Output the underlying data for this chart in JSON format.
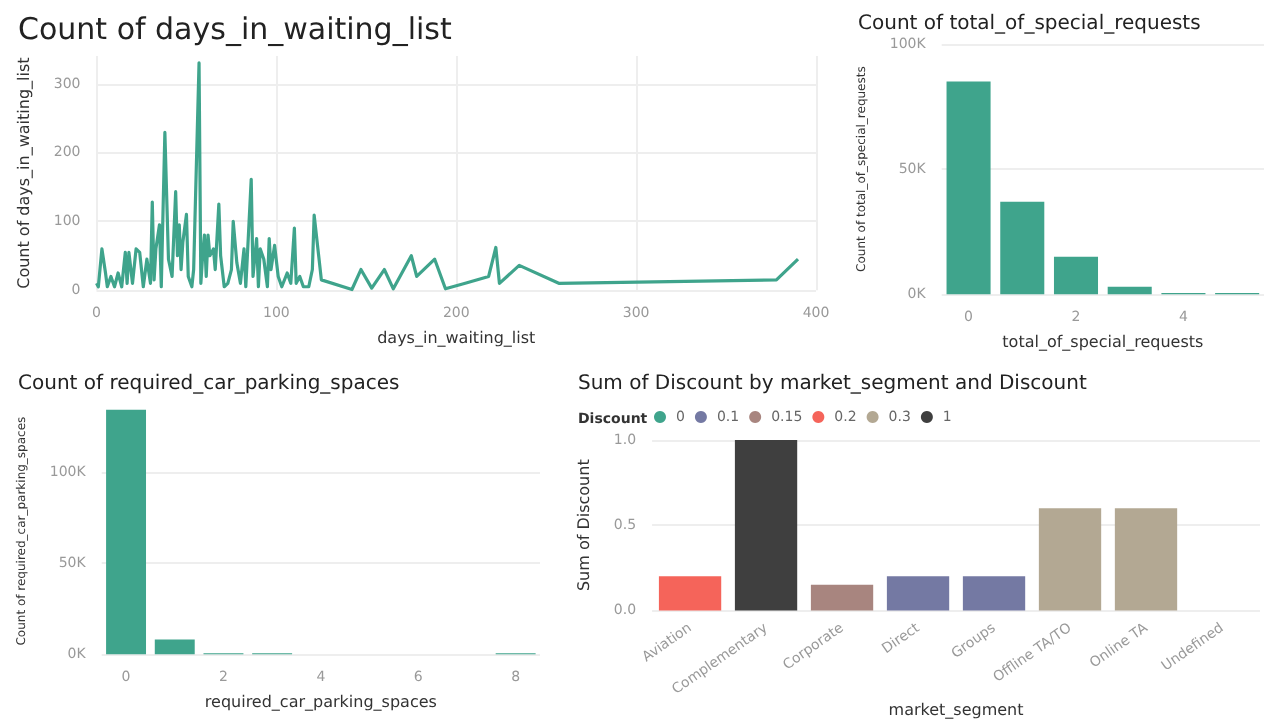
{
  "chart_data": [
    {
      "type": "line",
      "title": "Count of days_in_waiting_list",
      "xlabel": "days_in_waiting_list",
      "ylabel": "Count of days_in_waiting_list",
      "color": "#3fa48c",
      "line_style": "solid",
      "grid": true,
      "x": [
        0,
        1,
        3,
        5,
        6,
        8,
        10,
        12,
        14,
        16,
        17,
        18,
        20,
        22,
        24,
        26,
        28,
        30,
        31,
        32,
        33,
        35,
        36,
        38,
        40,
        42,
        44,
        45,
        46,
        47,
        48,
        50,
        51,
        53,
        54,
        57,
        58,
        59,
        60,
        61,
        62,
        63,
        65,
        66,
        68,
        69,
        71,
        73,
        75,
        76,
        78,
        80,
        82,
        83,
        86,
        87,
        89,
        90,
        91,
        93,
        95,
        96,
        97,
        99,
        101,
        103,
        106,
        108,
        110,
        111,
        113,
        115,
        118,
        120,
        121,
        125,
        142,
        147,
        153,
        160,
        165,
        175,
        178,
        188,
        194,
        205,
        218,
        222,
        224,
        235,
        257,
        378,
        390
      ],
      "values": [
        10,
        5,
        60,
        25,
        5,
        20,
        5,
        25,
        5,
        55,
        10,
        55,
        10,
        60,
        55,
        5,
        45,
        10,
        128,
        15,
        60,
        95,
        5,
        229,
        45,
        20,
        143,
        50,
        95,
        30,
        70,
        110,
        20,
        5,
        30,
        330,
        10,
        50,
        80,
        20,
        80,
        50,
        60,
        30,
        125,
        50,
        5,
        10,
        30,
        100,
        40,
        10,
        60,
        5,
        161,
        20,
        75,
        5,
        60,
        45,
        5,
        75,
        30,
        65,
        20,
        5,
        25,
        10,
        90,
        10,
        20,
        5,
        5,
        30,
        109,
        15,
        1,
        30,
        3,
        30,
        2,
        50,
        20,
        45,
        2,
        10,
        20,
        62,
        10,
        36,
        10,
        15,
        45
      ],
      "xlim": [
        0,
        400
      ],
      "xticks": [
        0,
        100,
        200,
        300,
        400
      ],
      "ylim": [
        0,
        340
      ],
      "yticks": [
        0,
        100,
        200,
        300
      ]
    },
    {
      "type": "bar",
      "title": "Count of total_of_special_requests",
      "xlabel": "total_of_special_requests",
      "ylabel": "Count of total_of_special_requests",
      "color": "#3fa48c",
      "grid": "y",
      "categories": [
        "0",
        null,
        "2",
        null,
        "4",
        null
      ],
      "values": [
        85000,
        37000,
        15000,
        3000,
        500,
        500
      ],
      "ylim": [
        0,
        100000
      ],
      "yticks": [
        {
          "value": 0,
          "label": "0K"
        },
        {
          "value": 50000,
          "label": "50K"
        },
        {
          "value": 100000,
          "label": "100K"
        }
      ]
    },
    {
      "type": "bar",
      "title": "Count of required_car_parking_spaces",
      "xlabel": "required_car_parking_spaces",
      "ylabel": "Count of required_car_parking_spaces",
      "color": "#3fa48c",
      "grid": "y",
      "categories": [
        "0",
        null,
        "2",
        null,
        "4",
        null,
        "6",
        null,
        "8"
      ],
      "values": [
        134000,
        8000,
        500,
        500,
        null,
        null,
        null,
        null,
        500
      ],
      "ylim": [
        0,
        135000
      ],
      "yticks": [
        {
          "value": 0,
          "label": "0K"
        },
        {
          "value": 50000,
          "label": "50K"
        },
        {
          "value": 100000,
          "label": "100K"
        }
      ]
    },
    {
      "type": "bar",
      "title": "Sum of Discount by market_segment and Discount",
      "xlabel": "market_segment",
      "ylabel": "Sum of Discount",
      "legend_title": "Discount",
      "legend": "top left",
      "stacked": true,
      "grid": "y",
      "categories": [
        "Aviation",
        "Complementary",
        "Corporate",
        "Direct",
        "Groups",
        "Offline TA/TO",
        "Online TA",
        "Undefined"
      ],
      "series": [
        {
          "name": "0",
          "color": "#3fa48c",
          "values": [
            null,
            null,
            null,
            null,
            null,
            null,
            null,
            0
          ]
        },
        {
          "name": "0.1",
          "color": "#7479a3",
          "values": [
            null,
            null,
            null,
            0.2,
            0.2,
            null,
            null,
            null
          ]
        },
        {
          "name": "0.15",
          "color": "#a8857f",
          "values": [
            null,
            null,
            0.15,
            null,
            null,
            null,
            null,
            null
          ]
        },
        {
          "name": "0.2",
          "color": "#f5645a",
          "values": [
            0.2,
            null,
            null,
            null,
            null,
            null,
            null,
            null
          ]
        },
        {
          "name": "0.3",
          "color": "#b3a893",
          "values": [
            null,
            null,
            null,
            null,
            null,
            0.6,
            0.6,
            null
          ]
        },
        {
          "name": "1",
          "color": "#3f3f3f",
          "values": [
            null,
            1,
            null,
            null,
            null,
            null,
            null,
            null
          ]
        }
      ],
      "ylim": [
        0,
        1
      ],
      "yticks": [
        {
          "value": 0,
          "label": "0.0"
        },
        {
          "value": 0.5,
          "label": "0.5"
        },
        {
          "value": 1,
          "label": "1.0"
        }
      ]
    }
  ]
}
